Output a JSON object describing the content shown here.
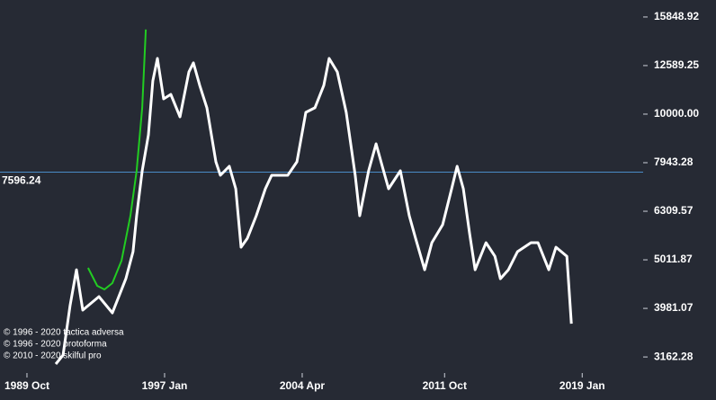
{
  "chart_data": {
    "type": "line",
    "log_y": true,
    "background": "#262a34",
    "xlim": [
      1988.33,
      2022.21
    ],
    "ylim": [
      2930,
      17180
    ],
    "xticks": [
      {
        "value": 1989.75,
        "label": "1989 Oct"
      },
      {
        "value": 1997.0,
        "label": "1997 Jan"
      },
      {
        "value": 2004.25,
        "label": "2004 Apr"
      },
      {
        "value": 2011.75,
        "label": "2011 Oct"
      },
      {
        "value": 2019.0,
        "label": "2019 Jan"
      }
    ],
    "yticks": [
      3162.28,
      3981.07,
      5011.87,
      6309.57,
      7943.28,
      {
        "value": 10000,
        "label": "10000.00"
      },
      12589.25,
      15848.92
    ],
    "series": [
      {
        "color": "#ffffff",
        "x": [
          1991.27,
          1991.65,
          1992.02,
          1992.36,
          1992.69,
          1993.54,
          1994.25,
          1994.96,
          1995.34,
          1995.53,
          1995.82,
          1996.15,
          1996.38,
          1996.62,
          1996.95,
          1997.33,
          1997.81,
          1998.28,
          1998.52,
          1998.85,
          1999.23,
          1999.7,
          1999.94,
          2000.41,
          2000.75,
          2001.03,
          2001.36,
          2001.83,
          2002.31,
          2002.64,
          2003.49,
          2003.97,
          2004.44,
          2004.92,
          2005.39,
          2005.67,
          2006.1,
          2006.57,
          2007.04,
          2007.28,
          2007.75,
          2008.14,
          2008.47,
          2008.8,
          2009.42,
          2009.89,
          2010.22,
          2010.7,
          2011.08,
          2011.65,
          2012.12,
          2012.41,
          2012.74,
          2013.07,
          2013.36,
          2013.93,
          2014.4,
          2014.69,
          2015.11,
          2015.59,
          2016.3,
          2016.67,
          2017.24,
          2017.62,
          2018.19,
          2018.43
        ],
        "values": [
          3057,
          3189,
          4033,
          4782,
          3948,
          4209,
          3897,
          4582,
          5209,
          6176,
          7644,
          9066,
          11710,
          13023,
          10752,
          10982,
          9872,
          12218,
          12754,
          11464,
          10304,
          7977,
          7483,
          7810,
          7020,
          5321,
          5551,
          6176,
          7020,
          7483,
          7483,
          7977,
          10085,
          10304,
          11464,
          13023,
          12218,
          10085,
          7483,
          6176,
          7644,
          8688,
          7810,
          7020,
          7644,
          6176,
          5551,
          4782,
          5436,
          5919,
          7020,
          7810,
          7020,
          5672,
          4782,
          5436,
          5098,
          4582,
          4782,
          5209,
          5436,
          5436,
          4782,
          5321,
          5098,
          3703
        ]
      },
      {
        "color": "#22cc22",
        "x": [
          1992.97,
          1993.45,
          1993.83,
          1994.25,
          1994.73,
          1995.2,
          1995.53,
          1995.82,
          1996.01
        ],
        "values": [
          4824,
          4430,
          4355,
          4487,
          4991,
          6176,
          7644,
          10304,
          14936
        ]
      }
    ],
    "hline": {
      "value": 7596.24,
      "color": "#4a8cc8"
    },
    "notes": [
      "© 1996 - 2020 tactica adversa",
      "© 1996 - 2020 protoforma",
      "© 2010 - 2020 skilful pro"
    ]
  }
}
